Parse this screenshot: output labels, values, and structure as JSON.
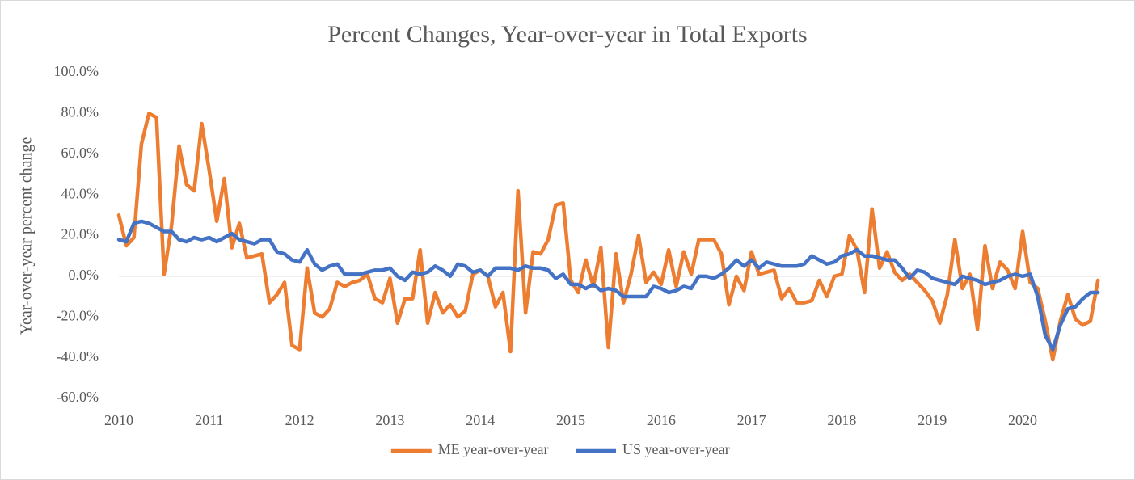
{
  "chart_data": {
    "type": "line",
    "title": "Percent Changes, Year-over-year in Total Exports",
    "y_label": "Year-over-year percent change",
    "categories": [
      "2010",
      null,
      null,
      null,
      null,
      null,
      null,
      null,
      null,
      null,
      null,
      null,
      "2011",
      null,
      null,
      null,
      null,
      null,
      null,
      null,
      null,
      null,
      null,
      null,
      "2012",
      null,
      null,
      null,
      null,
      null,
      null,
      null,
      null,
      null,
      null,
      null,
      "2013",
      null,
      null,
      null,
      null,
      null,
      null,
      null,
      null,
      null,
      null,
      null,
      "2014",
      null,
      null,
      null,
      null,
      null,
      null,
      null,
      null,
      null,
      null,
      null,
      "2015",
      null,
      null,
      null,
      null,
      null,
      null,
      null,
      null,
      null,
      null,
      null,
      "2016",
      null,
      null,
      null,
      null,
      null,
      null,
      null,
      null,
      null,
      null,
      null,
      "2017",
      null,
      null,
      null,
      null,
      null,
      null,
      null,
      null,
      null,
      null,
      null,
      "2018",
      null,
      null,
      null,
      null,
      null,
      null,
      null,
      null,
      null,
      null,
      null,
      "2019",
      null,
      null,
      null,
      null,
      null,
      null,
      null,
      null,
      null,
      null,
      null,
      "2020",
      null,
      null,
      null,
      null,
      null,
      null,
      null,
      null,
      null,
      null
    ],
    "series": [
      {
        "name": "ME year-over-year",
        "color": "#ed7d31",
        "values": [
          30,
          15,
          19,
          65,
          80,
          78,
          1,
          25,
          64,
          45,
          42,
          75,
          52,
          27,
          48,
          14,
          26,
          9,
          10,
          11,
          -13,
          -9,
          -3,
          -34,
          -36,
          4,
          -18,
          -20,
          -16,
          -3,
          -5,
          -3,
          -2,
          1,
          -11,
          -13,
          -1,
          -23,
          -11,
          -11,
          13,
          -23,
          -8,
          -18,
          -14,
          -20,
          -17,
          1,
          3,
          0,
          -15,
          -8,
          -37,
          42,
          -18,
          12,
          11,
          18,
          35,
          36,
          -2,
          -8,
          8,
          -5,
          14,
          -35,
          11,
          -13,
          1,
          20,
          -3,
          2,
          -4,
          13,
          -5,
          12,
          1,
          18,
          18,
          18,
          11,
          -14,
          0,
          -7,
          12,
          1,
          2,
          3,
          -11,
          -6,
          -13,
          -13,
          -12,
          -2,
          -10,
          0,
          1,
          20,
          13,
          -8,
          33,
          4,
          12,
          2,
          -2,
          1,
          -3,
          -7,
          -12,
          -23,
          -9,
          18,
          -6,
          1,
          -26,
          15,
          -6,
          7,
          3,
          -6,
          22,
          -3,
          -6,
          -22,
          -41,
          -22,
          -9,
          -21,
          -24,
          -22,
          -2
        ]
      },
      {
        "name": "US year-over-year",
        "color": "#4472c4",
        "values": [
          18,
          17,
          26,
          27,
          26,
          24,
          22,
          22,
          18,
          17,
          19,
          18,
          19,
          17,
          19,
          21,
          18,
          17,
          16,
          18,
          18,
          12,
          11,
          8,
          7,
          13,
          6,
          3,
          5,
          6,
          1,
          1,
          1,
          2,
          3,
          3,
          4,
          0,
          -2,
          2,
          1,
          2,
          5,
          3,
          0,
          6,
          5,
          2,
          3,
          0,
          4,
          4,
          4,
          3,
          5,
          4,
          4,
          3,
          -1,
          1,
          -4,
          -4,
          -6,
          -4,
          -7,
          -6,
          -7,
          -10,
          -10,
          -10,
          -10,
          -5,
          -6,
          -8,
          -7,
          -5,
          -6,
          0,
          0,
          -1,
          1,
          4,
          8,
          5,
          8,
          4,
          7,
          6,
          5,
          5,
          5,
          6,
          10,
          8,
          6,
          7,
          10,
          11,
          13,
          10,
          10,
          9,
          8,
          8,
          4,
          -1,
          3,
          2,
          -1,
          -2,
          -3,
          -4,
          0,
          -1,
          -2,
          -4,
          -3,
          -2,
          0,
          1,
          0,
          1,
          -10,
          -29,
          -36,
          -24,
          -16,
          -15,
          -11,
          -8,
          -8
        ]
      }
    ],
    "ylim": [
      -60,
      100
    ],
    "yticks": [
      {
        "value": -60,
        "label": "-60.0%"
      },
      {
        "value": -40,
        "label": "-40.0%"
      },
      {
        "value": -20,
        "label": "-20.0%"
      },
      {
        "value": 0,
        "label": "0.0%"
      },
      {
        "value": 20,
        "label": "20.0%"
      },
      {
        "value": 40,
        "label": "40.0%"
      },
      {
        "value": 60,
        "label": "60.0%"
      },
      {
        "value": 80,
        "label": "80.0%"
      },
      {
        "value": 100,
        "label": "100.0%"
      }
    ],
    "legend": "bottom"
  }
}
